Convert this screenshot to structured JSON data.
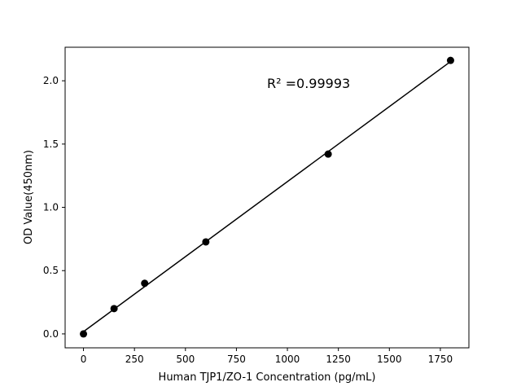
{
  "chart_data": {
    "type": "scatter",
    "title": "",
    "xlabel": "Human TJP1/ZO-1 Concentration (pg/mL)",
    "ylabel": "OD Value(450nm)",
    "x": [
      0,
      150,
      300,
      600,
      1200,
      1800
    ],
    "y": [
      0.0,
      0.2,
      0.4,
      0.727,
      1.421,
      2.161
    ],
    "xlim": [
      -90,
      1890
    ],
    "ylim": [
      -0.11,
      2.265
    ],
    "xticks": [
      0,
      250,
      500,
      750,
      1000,
      1250,
      1500,
      1750
    ],
    "yticks": [
      0.0,
      0.5,
      1.0,
      1.5,
      2.0
    ],
    "xtick_labels": [
      "0",
      "250",
      "500",
      "750",
      "1000",
      "1250",
      "1500",
      "1750"
    ],
    "ytick_labels": [
      "0.0",
      "0.5",
      "1.0",
      "1.5",
      "2.0"
    ],
    "fit_line": "linear",
    "annotation": "R² =0.99993",
    "grid": false,
    "colors": {
      "points": "#000000",
      "line": "#000000"
    }
  }
}
